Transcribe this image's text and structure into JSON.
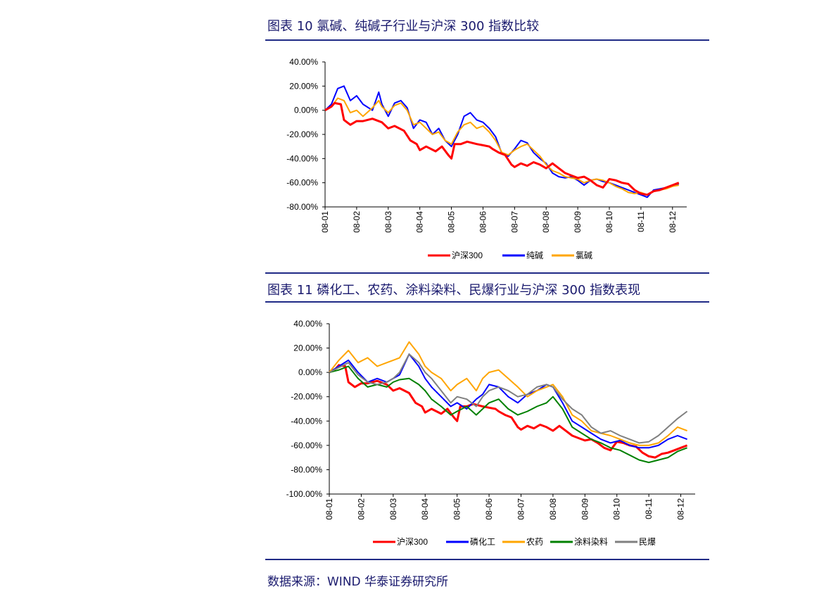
{
  "source": "数据来源：WIND  华泰证券研究所",
  "chart_data": [
    {
      "type": "line",
      "title": "图表 10 氯碱、纯碱子行业与沪深 300 指数比较",
      "x_ticks": [
        "08-01",
        "08-02",
        "08-03",
        "08-04",
        "08-05",
        "08-06",
        "08-07",
        "08-08",
        "08-09",
        "08-10",
        "08-11",
        "08-12"
      ],
      "y_ticks": [
        "40.00%",
        "20.00%",
        "0.00%",
        "-20.00%",
        "-40.00%",
        "-60.00%",
        "-80.00%"
      ],
      "ylim": [
        -80,
        40
      ],
      "legend_position": "bottom",
      "series": [
        {
          "name": "沪深300",
          "color": "#ff0000",
          "x": [
            0,
            0.2,
            0.3,
            0.5,
            0.6,
            0.8,
            1.0,
            1.2,
            1.5,
            1.8,
            2.0,
            2.2,
            2.5,
            2.7,
            2.9,
            3.0,
            3.2,
            3.5,
            3.7,
            3.9,
            4.0,
            4.1,
            4.3,
            4.5,
            4.8,
            5.0,
            5.2,
            5.3,
            5.5,
            5.7,
            5.9,
            6.0,
            6.2,
            6.4,
            6.6,
            6.8,
            7.0,
            7.2,
            7.4,
            7.6,
            7.8,
            8.0,
            8.2,
            8.4,
            8.6,
            8.8,
            9.0,
            9.2,
            9.4,
            9.6,
            9.8,
            10.0,
            10.2,
            10.4,
            10.6,
            10.8,
            11.0,
            11.2
          ],
          "y": [
            0,
            3,
            6,
            5,
            -8,
            -12,
            -9,
            -9,
            -7,
            -10,
            -15,
            -13,
            -17,
            -25,
            -28,
            -33,
            -30,
            -34,
            -30,
            -37,
            -40,
            -28,
            -28,
            -26,
            -28,
            -29,
            -30,
            -32,
            -35,
            -37,
            -45,
            -47,
            -44,
            -46,
            -43,
            -45,
            -48,
            -44,
            -48,
            -52,
            -54,
            -56,
            -55,
            -58,
            -62,
            -64,
            -57,
            -58,
            -60,
            -61,
            -66,
            -69,
            -70,
            -67,
            -66,
            -64,
            -62,
            -60
          ]
        },
        {
          "name": "纯碱",
          "color": "#0000ff",
          "x": [
            0,
            0.2,
            0.4,
            0.6,
            0.8,
            1.0,
            1.2,
            1.5,
            1.7,
            1.8,
            2.0,
            2.2,
            2.4,
            2.6,
            2.8,
            3.0,
            3.2,
            3.4,
            3.6,
            3.8,
            4.0,
            4.2,
            4.4,
            4.6,
            4.8,
            5.0,
            5.2,
            5.4,
            5.6,
            5.8,
            6.0,
            6.2,
            6.4,
            6.6,
            6.8,
            7.0,
            7.2,
            7.4,
            7.6,
            7.8,
            8.0,
            8.2,
            8.4,
            8.6,
            8.8,
            9.0,
            9.2,
            9.4,
            9.6,
            9.8,
            10.0,
            10.2,
            10.4,
            10.6,
            10.8,
            11.0,
            11.2
          ],
          "y": [
            0,
            5,
            18,
            20,
            8,
            12,
            5,
            0,
            15,
            5,
            -5,
            6,
            8,
            2,
            -15,
            -8,
            -10,
            -20,
            -15,
            -25,
            -30,
            -20,
            -5,
            -2,
            -8,
            -10,
            -15,
            -22,
            -36,
            -38,
            -32,
            -25,
            -27,
            -35,
            -40,
            -44,
            -52,
            -55,
            -56,
            -55,
            -58,
            -62,
            -58,
            -57,
            -59,
            -60,
            -62,
            -64,
            -66,
            -68,
            -70,
            -72,
            -66,
            -65,
            -64,
            -62,
            -61
          ]
        },
        {
          "name": "氯碱",
          "color": "#ffa500",
          "x": [
            0,
            0.2,
            0.4,
            0.6,
            0.8,
            1.0,
            1.2,
            1.5,
            1.7,
            1.8,
            2.0,
            2.2,
            2.4,
            2.6,
            2.8,
            3.0,
            3.2,
            3.4,
            3.6,
            3.8,
            4.0,
            4.2,
            4.4,
            4.6,
            4.8,
            5.0,
            5.2,
            5.4,
            5.6,
            5.8,
            6.0,
            6.2,
            6.4,
            6.6,
            6.8,
            7.0,
            7.2,
            7.4,
            7.6,
            7.8,
            8.0,
            8.2,
            8.4,
            8.6,
            8.8,
            9.0,
            9.2,
            9.4,
            9.6,
            9.8,
            10.0,
            10.2,
            10.4,
            10.6,
            10.8,
            11.0,
            11.2
          ],
          "y": [
            0,
            3,
            10,
            8,
            -2,
            0,
            -5,
            2,
            8,
            3,
            -2,
            4,
            6,
            0,
            -12,
            -10,
            -15,
            -20,
            -18,
            -25,
            -28,
            -18,
            -12,
            -10,
            -15,
            -13,
            -18,
            -25,
            -35,
            -37,
            -33,
            -30,
            -28,
            -33,
            -38,
            -45,
            -50,
            -52,
            -55,
            -56,
            -57,
            -60,
            -58,
            -57,
            -58,
            -60,
            -63,
            -65,
            -68,
            -69,
            -68,
            -70,
            -67,
            -66,
            -65,
            -63,
            -62
          ]
        }
      ]
    },
    {
      "type": "line",
      "title": "图表 11 磷化工、农药、涂料染料、民爆行业与沪深 300 指数表现",
      "x_ticks": [
        "08-01",
        "08-02",
        "08-03",
        "08-04",
        "08-05",
        "08-06",
        "08-07",
        "08-08",
        "08-09",
        "08-10",
        "08-11",
        "08-12"
      ],
      "y_ticks": [
        "40.00%",
        "20.00%",
        "0.00%",
        "-20.00%",
        "-40.00%",
        "-60.00%",
        "-80.00%",
        "-100.00%"
      ],
      "ylim": [
        -100,
        40
      ],
      "legend_position": "bottom",
      "series": [
        {
          "name": "沪深300",
          "color": "#ff0000",
          "x": [
            0,
            0.2,
            0.3,
            0.5,
            0.6,
            0.8,
            1.0,
            1.2,
            1.5,
            1.8,
            2.0,
            2.2,
            2.5,
            2.7,
            2.9,
            3.0,
            3.2,
            3.5,
            3.7,
            3.9,
            4.0,
            4.1,
            4.3,
            4.5,
            4.8,
            5.0,
            5.2,
            5.3,
            5.5,
            5.7,
            5.9,
            6.0,
            6.2,
            6.4,
            6.6,
            6.8,
            7.0,
            7.2,
            7.4,
            7.6,
            7.8,
            8.0,
            8.2,
            8.4,
            8.6,
            8.8,
            9.0,
            9.2,
            9.4,
            9.6,
            9.8,
            10.0,
            10.2,
            10.4,
            10.6,
            10.8,
            11.0,
            11.2
          ],
          "y": [
            0,
            3,
            6,
            5,
            -8,
            -12,
            -9,
            -9,
            -7,
            -10,
            -15,
            -13,
            -17,
            -25,
            -28,
            -33,
            -30,
            -34,
            -30,
            -37,
            -40,
            -28,
            -28,
            -26,
            -28,
            -29,
            -30,
            -32,
            -35,
            -37,
            -45,
            -47,
            -44,
            -46,
            -43,
            -45,
            -48,
            -44,
            -48,
            -52,
            -54,
            -56,
            -55,
            -58,
            -62,
            -64,
            -57,
            -58,
            -60,
            -61,
            -66,
            -69,
            -70,
            -67,
            -66,
            -64,
            -62,
            -60
          ]
        },
        {
          "name": "磷化工",
          "color": "#0000ff",
          "x": [
            0,
            0.3,
            0.6,
            0.9,
            1.2,
            1.5,
            1.8,
            2.0,
            2.2,
            2.5,
            2.8,
            3.0,
            3.2,
            3.5,
            3.8,
            4.0,
            4.3,
            4.6,
            4.8,
            5.0,
            5.3,
            5.6,
            5.9,
            6.2,
            6.5,
            6.8,
            7.0,
            7.3,
            7.6,
            7.9,
            8.2,
            8.5,
            8.8,
            9.1,
            9.4,
            9.7,
            10.0,
            10.3,
            10.6,
            10.9,
            11.2
          ],
          "y": [
            0,
            5,
            10,
            0,
            -8,
            -5,
            -8,
            -5,
            -2,
            15,
            5,
            -5,
            -12,
            -20,
            -28,
            -25,
            -30,
            -22,
            -18,
            -10,
            -12,
            -20,
            -25,
            -18,
            -15,
            -10,
            -12,
            -25,
            -40,
            -45,
            -50,
            -55,
            -58,
            -56,
            -60,
            -62,
            -62,
            -60,
            -55,
            -52,
            -55
          ]
        },
        {
          "name": "农药",
          "color": "#ffa500",
          "x": [
            0,
            0.3,
            0.6,
            0.9,
            1.2,
            1.5,
            1.8,
            2.0,
            2.2,
            2.5,
            2.8,
            3.0,
            3.2,
            3.5,
            3.8,
            4.0,
            4.3,
            4.6,
            4.8,
            5.0,
            5.3,
            5.6,
            5.9,
            6.2,
            6.5,
            6.8,
            7.0,
            7.3,
            7.6,
            7.9,
            8.2,
            8.5,
            8.8,
            9.1,
            9.4,
            9.7,
            10.0,
            10.3,
            10.6,
            10.9,
            11.2
          ],
          "y": [
            0,
            10,
            18,
            8,
            12,
            5,
            8,
            10,
            12,
            25,
            15,
            5,
            0,
            -5,
            -15,
            -10,
            -5,
            -15,
            -5,
            0,
            2,
            -5,
            -12,
            -20,
            -15,
            -12,
            -10,
            -20,
            -35,
            -40,
            -48,
            -50,
            -52,
            -55,
            -58,
            -60,
            -60,
            -58,
            -52,
            -45,
            -48
          ]
        },
        {
          "name": "涂料染料",
          "color": "#008000",
          "x": [
            0,
            0.3,
            0.6,
            0.9,
            1.2,
            1.5,
            1.8,
            2.0,
            2.2,
            2.5,
            2.8,
            3.0,
            3.2,
            3.5,
            3.8,
            4.0,
            4.3,
            4.6,
            4.8,
            5.0,
            5.3,
            5.6,
            5.9,
            6.2,
            6.5,
            6.8,
            7.0,
            7.3,
            7.6,
            7.9,
            8.2,
            8.5,
            8.8,
            9.1,
            9.4,
            9.7,
            10.0,
            10.3,
            10.6,
            10.9,
            11.2
          ],
          "y": [
            0,
            2,
            5,
            -5,
            -12,
            -10,
            -12,
            -8,
            -6,
            -5,
            -10,
            -15,
            -22,
            -28,
            -35,
            -32,
            -28,
            -35,
            -30,
            -25,
            -22,
            -30,
            -35,
            -32,
            -28,
            -25,
            -20,
            -30,
            -45,
            -50,
            -55,
            -58,
            -62,
            -64,
            -68,
            -72,
            -74,
            -72,
            -70,
            -65,
            -62
          ]
        },
        {
          "name": "民爆",
          "color": "#808080",
          "x": [
            0,
            0.3,
            0.6,
            0.9,
            1.2,
            1.5,
            1.8,
            2.0,
            2.2,
            2.5,
            2.8,
            3.0,
            3.2,
            3.5,
            3.8,
            4.0,
            4.3,
            4.6,
            4.8,
            5.0,
            5.3,
            5.6,
            5.9,
            6.2,
            6.5,
            6.8,
            7.0,
            7.3,
            7.6,
            7.9,
            8.2,
            8.5,
            8.8,
            9.1,
            9.4,
            9.7,
            10.0,
            10.3,
            10.6,
            10.9,
            11.2
          ],
          "y": [
            0,
            4,
            8,
            -2,
            -8,
            -10,
            -8,
            -5,
            0,
            15,
            8,
            0,
            -5,
            -15,
            -25,
            -20,
            -22,
            -28,
            -20,
            -15,
            -12,
            -15,
            -20,
            -18,
            -12,
            -10,
            -12,
            -22,
            -30,
            -35,
            -45,
            -50,
            -48,
            -52,
            -55,
            -58,
            -57,
            -52,
            -45,
            -38,
            -32
          ]
        }
      ]
    }
  ]
}
